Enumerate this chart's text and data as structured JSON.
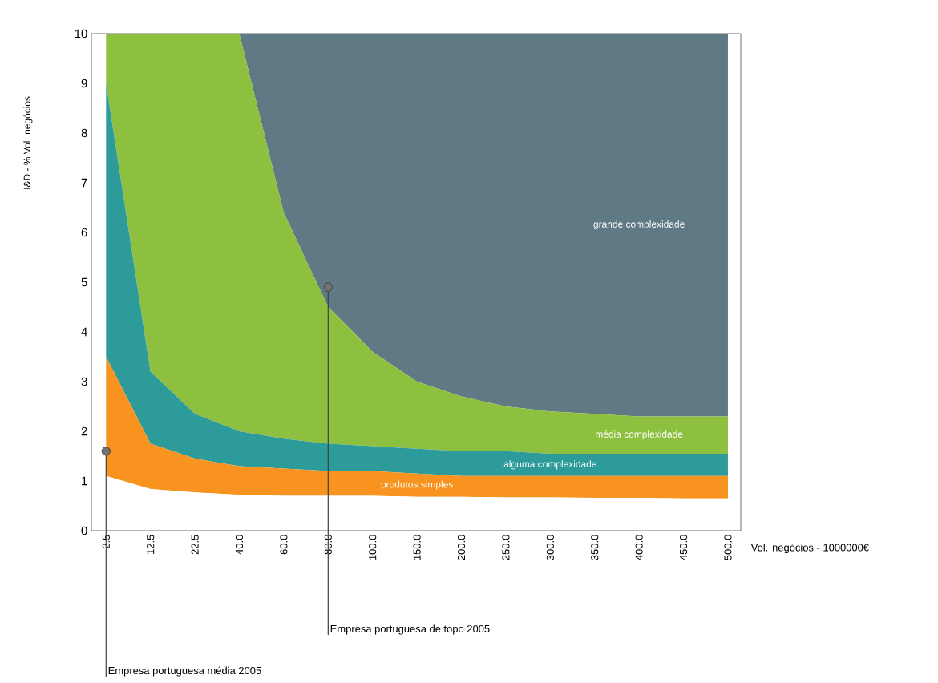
{
  "chart_data": {
    "type": "area",
    "xlabel": "Vol. negócios - 1000000€",
    "ylabel": "I&D - % Vol. negócios",
    "categories": [
      "2.5",
      "12.5",
      "22.5",
      "40.0",
      "60.0",
      "80.0",
      "100.0",
      "150.0",
      "200.0",
      "250.0",
      "300.0",
      "350.0",
      "400.0",
      "450.0",
      "500.0"
    ],
    "series": [
      {
        "color": "#ffffff",
        "values": [
          1.1,
          0.84,
          0.77,
          0.72,
          0.7,
          0.7,
          0.7,
          0.68,
          0.68,
          0.67,
          0.67,
          0.66,
          0.66,
          0.65,
          0.65
        ]
      },
      {
        "name": "produtos simples",
        "color": "#f7931e",
        "values": [
          2.4,
          0.91,
          0.68,
          0.58,
          0.55,
          0.5,
          0.5,
          0.47,
          0.42,
          0.43,
          0.43,
          0.44,
          0.44,
          0.45,
          0.45
        ]
      },
      {
        "name": "alguma complexidade",
        "color": "#2e9b9b",
        "values": [
          5.5,
          1.45,
          0.9,
          0.7,
          0.6,
          0.55,
          0.5,
          0.5,
          0.5,
          0.5,
          0.45,
          0.45,
          0.45,
          0.45,
          0.45
        ]
      },
      {
        "name": "média complexidade",
        "color": "#8dc03f",
        "values": [
          1,
          6.8,
          7.65,
          8.0,
          4.55,
          2.75,
          1.9,
          1.35,
          1.1,
          0.9,
          0.85,
          0.8,
          0.75,
          0.75,
          0.75
        ]
      },
      {
        "name": "grande complexidade",
        "color": "#5f7a85",
        "values": [
          0,
          0,
          0,
          0,
          3.6,
          5.5,
          6.4,
          7.0,
          7.3,
          7.5,
          7.6,
          7.65,
          7.7,
          7.7,
          7.7
        ]
      }
    ],
    "stacked": true,
    "ylim": [
      0,
      10
    ],
    "yticks": [
      0,
      1,
      2,
      3,
      4,
      5,
      6,
      7,
      8,
      9,
      10
    ],
    "annotations": [
      {
        "text": "Empresa portuguesa média 2005",
        "x": "2.5",
        "y": 1.6
      },
      {
        "text": "Empresa portuguesa de topo 2005",
        "x": "80.0",
        "y": 4.9
      }
    ]
  }
}
